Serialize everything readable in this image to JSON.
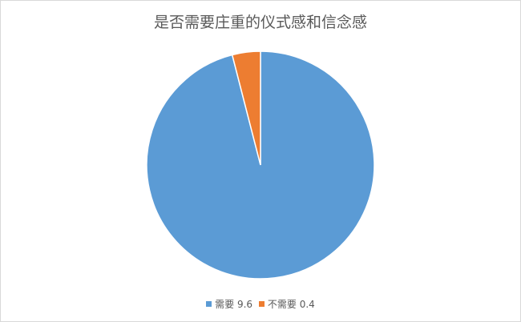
{
  "chart_data": {
    "type": "pie",
    "title": "是否需要庄重的仪式感和信念感",
    "categories": [
      "需要",
      "不需要"
    ],
    "values": [
      9.6,
      0.4
    ],
    "colors": [
      "#5b9bd5",
      "#ed7d31"
    ],
    "legend_position": "bottom",
    "legend_labels": [
      "需要 9.6",
      "不需要 0.4"
    ]
  }
}
